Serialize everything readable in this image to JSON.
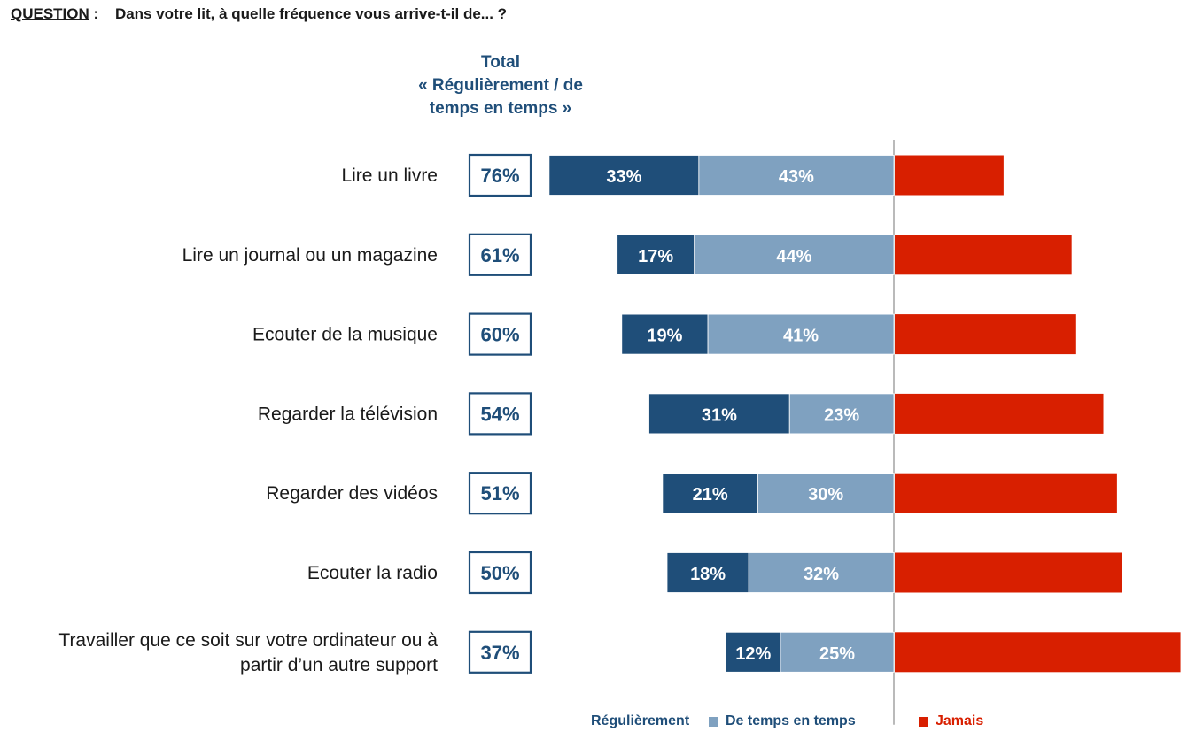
{
  "header": {
    "question_label": "QUESTION",
    "question_sep": ":",
    "question_text": "Dans votre lit, à quelle fréquence vous arrive-t-il de... ?",
    "total_line1": "Total",
    "total_line2": "« Régulièrement / de",
    "total_line3": "temps en temps »"
  },
  "colors": {
    "regulierement": "#1f4e79",
    "temps_en_temps": "#7fa1c0",
    "jamais": "#d81f00",
    "box_border": "#1f4e79",
    "text_dark": "#1a1a1a"
  },
  "legend": {
    "regulierement": "Régulièrement",
    "temps_en_temps": "De temps en temps",
    "jamais": "Jamais"
  },
  "chart_data": {
    "type": "bar",
    "orientation": "horizontal-diverging",
    "title": "",
    "categories": [
      [
        "Lire un livre"
      ],
      [
        "Lire un journal ou un magazine"
      ],
      [
        "Ecouter de la musique"
      ],
      [
        "Regarder la télévision"
      ],
      [
        "Regarder des vidéos"
      ],
      [
        "Ecouter la radio"
      ],
      [
        "Travailler que ce soit sur votre ordinateur ou à",
        "partir d’un autre support"
      ]
    ],
    "totals": [
      "76%",
      "61%",
      "60%",
      "54%",
      "51%",
      "50%",
      "37%"
    ],
    "series": [
      {
        "name": "Régulièrement",
        "values": [
          33,
          17,
          19,
          31,
          21,
          18,
          12
        ]
      },
      {
        "name": "De temps en temps",
        "values": [
          43,
          44,
          41,
          23,
          30,
          32,
          25
        ]
      },
      {
        "name": "Jamais",
        "values": [
          24,
          39,
          40,
          46,
          49,
          50,
          63
        ]
      }
    ],
    "value_labels_shown": [
      "Régulièrement",
      "De temps en temps"
    ],
    "legend_position": "bottom"
  }
}
